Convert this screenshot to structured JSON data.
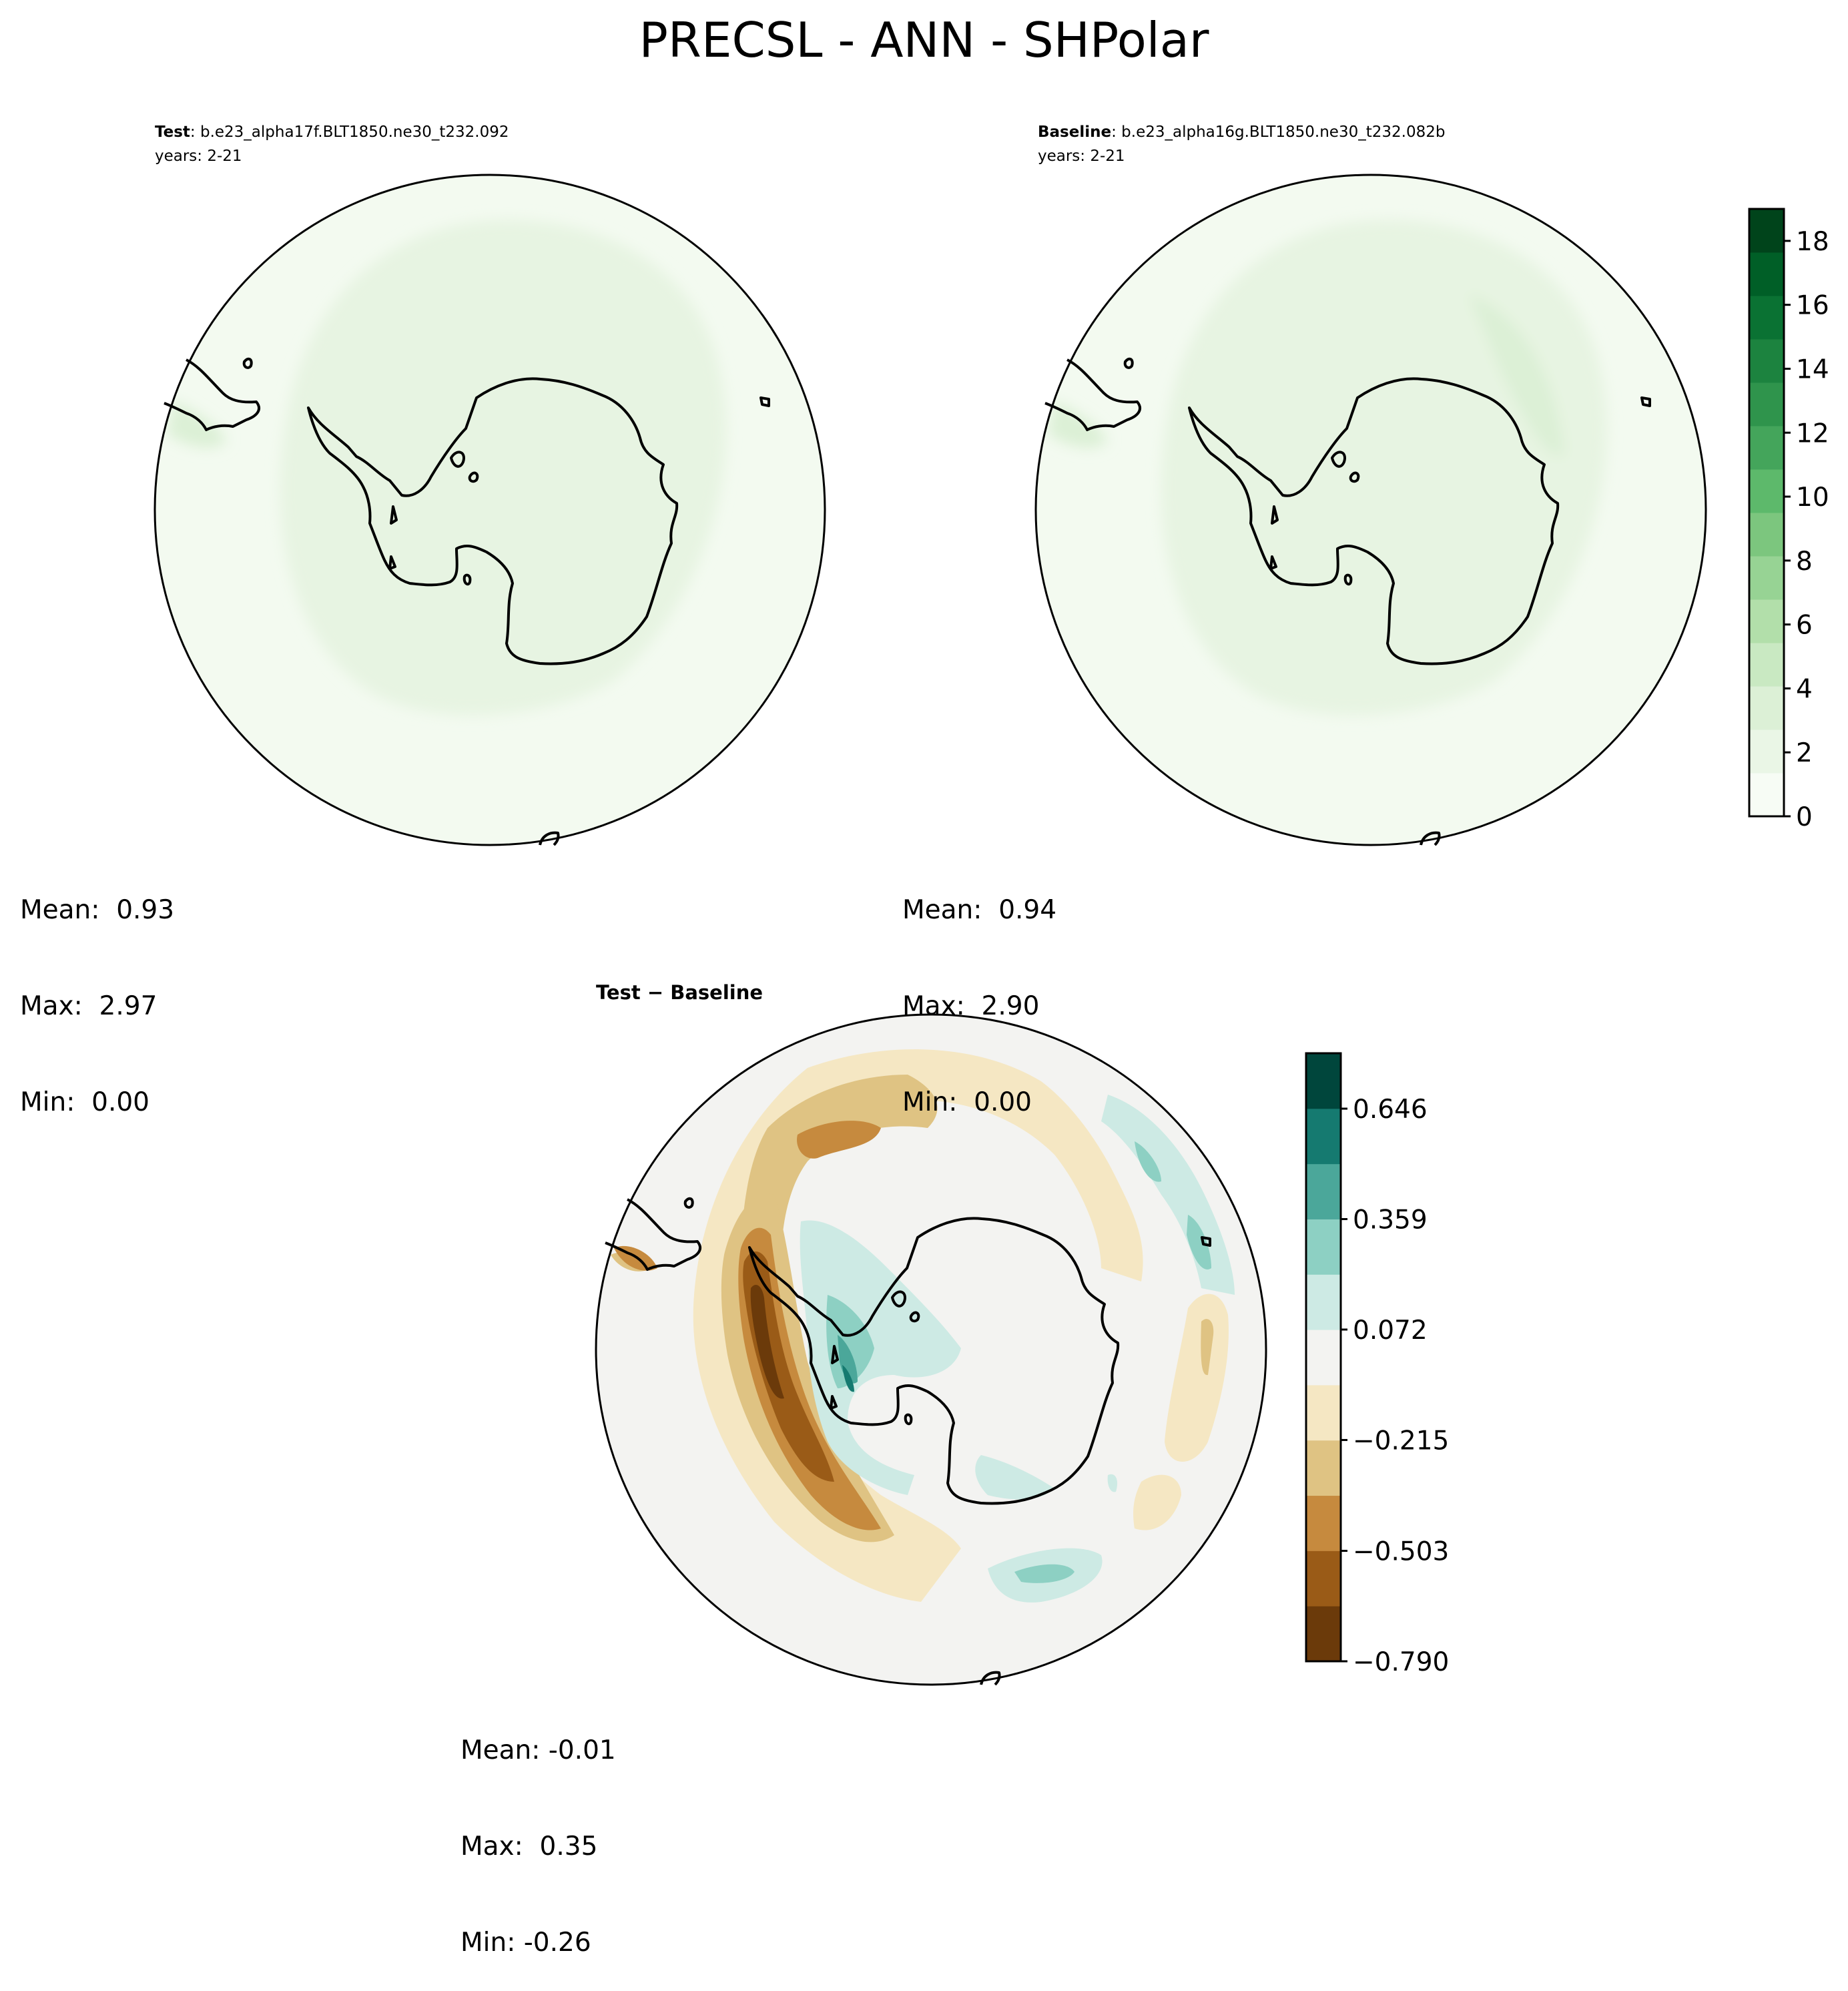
{
  "title": "PRECSL - ANN - SHPolar",
  "colors": {
    "background": "#ffffff",
    "precip_scale": [
      "#f7fcf5",
      "#eaf6e6",
      "#dcf0d6",
      "#c9e9c2",
      "#b2dfaa",
      "#97d394",
      "#7cc67e",
      "#5db96b",
      "#44a55b",
      "#2f944c",
      "#1c833f",
      "#0a7233",
      "#005f27",
      "#00441b"
    ],
    "diff_scale": [
      "#6b3a0a",
      "#9a5b17",
      "#c68a3e",
      "#dfc383",
      "#f5e7c3",
      "#f3f3f1",
      "#cdeae4",
      "#8dd0c3",
      "#4ba79a",
      "#157a70",
      "#00463c"
    ],
    "coastline": "#000000"
  },
  "panels": {
    "test": {
      "label": "Test",
      "case": ": b.e23_alpha17f.BLT1850.ne30_t232.092",
      "years": "years: 2-21",
      "stats": {
        "mean": "Mean:  0.93",
        "max": "Max:  2.97",
        "min": "Min:  0.00"
      }
    },
    "baseline": {
      "label": "Baseline",
      "case": ": b.e23_alpha16g.BLT1850.ne30_t232.082b",
      "years": "years: 2-21",
      "stats": {
        "mean": "Mean:  0.94",
        "max": "Max:  2.90",
        "min": "Min:  0.00"
      }
    },
    "diff": {
      "label": "Test − Baseline",
      "stats": {
        "mean": "Mean: -0.01",
        "max": "Max:  0.35",
        "min": "Min: -0.26"
      }
    }
  },
  "chart_data": [
    {
      "type": "heatmap",
      "projection": "south polar stereographic",
      "title": "Test",
      "colorbar": {
        "min": 0,
        "max": 19,
        "ticks": [
          "0",
          "2",
          "4",
          "6",
          "8",
          "10",
          "12",
          "14",
          "16",
          "18"
        ]
      }
    },
    {
      "type": "heatmap",
      "projection": "south polar stereographic",
      "title": "Baseline",
      "colorbar": {
        "min": 0,
        "max": 19,
        "ticks": [
          "0",
          "2",
          "4",
          "6",
          "8",
          "10",
          "12",
          "14",
          "16",
          "18"
        ]
      }
    },
    {
      "type": "heatmap",
      "projection": "south polar stereographic",
      "title": "Test − Baseline",
      "colorbar": {
        "min": -0.79,
        "max": 0.79,
        "ticks": [
          "−0.790",
          "−0.503",
          "−0.215",
          "0.072",
          "0.359",
          "0.646"
        ]
      }
    }
  ]
}
